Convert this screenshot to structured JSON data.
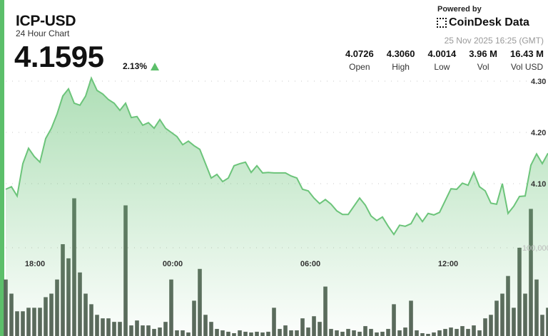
{
  "header": {
    "title": "ICP-USD",
    "subtitle": "24 Hour Chart",
    "price": "4.1595",
    "change": "2.13%",
    "change_direction": "up",
    "powered_by": "Powered by",
    "brand": "CoinDesk Data",
    "timestamp": "25 Nov 2025 16:25 (GMT)"
  },
  "stats": [
    {
      "value": "4.0726",
      "label": "Open"
    },
    {
      "value": "4.3060",
      "label": "High"
    },
    {
      "value": "4.0014",
      "label": "Low"
    },
    {
      "value": "3.96 M",
      "label": "Vol"
    },
    {
      "value": "16.43 M",
      "label": "Vol USD"
    }
  ],
  "colors": {
    "accent": "#5cbf6a",
    "line": "#6cc47a",
    "volume": "#59655a"
  },
  "chart_data": {
    "type": "area",
    "xticks": [
      "18:00",
      "00:00",
      "06:00",
      "12:00"
    ],
    "yticks": [
      "4.30",
      "4.20",
      "4.10"
    ],
    "volume_tick": "100,000",
    "ylim": [
      4.0,
      4.3
    ],
    "grid": true,
    "price": [
      4.089,
      4.094,
      4.076,
      4.139,
      4.169,
      4.153,
      4.142,
      4.188,
      4.208,
      4.236,
      4.271,
      4.285,
      4.257,
      4.253,
      4.271,
      4.306,
      4.282,
      4.275,
      4.264,
      4.257,
      4.243,
      4.257,
      4.229,
      4.231,
      4.214,
      4.219,
      4.208,
      4.225,
      4.208,
      4.2,
      4.192,
      4.176,
      4.183,
      4.174,
      4.167,
      4.139,
      4.111,
      4.118,
      4.104,
      4.111,
      4.135,
      4.139,
      4.142,
      4.122,
      4.135,
      4.121,
      4.122,
      4.121,
      4.121,
      4.121,
      4.115,
      4.111,
      4.089,
      4.086,
      4.072,
      4.061,
      4.069,
      4.06,
      4.047,
      4.04,
      4.04,
      4.056,
      4.072,
      4.058,
      4.037,
      4.028,
      4.035,
      4.017,
      4.001,
      4.019,
      4.017,
      4.022,
      4.042,
      4.026,
      4.042,
      4.039,
      4.044,
      4.067,
      4.09,
      4.089,
      4.101,
      4.097,
      4.122,
      4.094,
      4.086,
      4.062,
      4.06,
      4.1,
      4.042,
      4.056,
      4.075,
      4.076,
      4.136,
      4.158,
      4.139,
      4.1595
    ],
    "volume": [
      64000,
      48000,
      28000,
      28000,
      32000,
      32000,
      32000,
      44000,
      48000,
      64000,
      104000,
      88000,
      156000,
      72000,
      48000,
      36000,
      24000,
      20000,
      20000,
      16000,
      16000,
      148000,
      12000,
      17600,
      12000,
      12000,
      8000,
      9600,
      16000,
      64000,
      6400,
      6400,
      4000,
      40000,
      76000,
      24000,
      16000,
      8000,
      6400,
      4800,
      3200,
      6400,
      4800,
      4000,
      4800,
      4000,
      4800,
      32000,
      8000,
      12000,
      6400,
      6400,
      20000,
      9600,
      22400,
      16000,
      56000,
      8000,
      6400,
      4800,
      8000,
      6400,
      4800,
      11200,
      8000,
      4000,
      4800,
      8000,
      36000,
      6400,
      9600,
      40000,
      6400,
      3200,
      2400,
      4000,
      6400,
      8000,
      9600,
      8000,
      11200,
      8000,
      12000,
      6400,
      20000,
      24000,
      40000,
      48000,
      68000,
      32000,
      100000,
      48000,
      144000,
      64000,
      24000,
      32000
    ]
  }
}
